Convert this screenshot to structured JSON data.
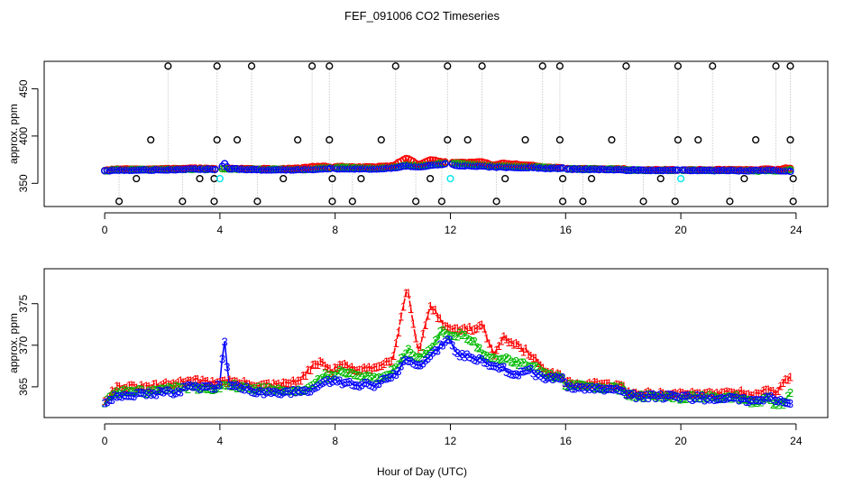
{
  "title": "FEF_091006  CO2 Timeseries",
  "xlabel": "Hour of Day (UTC)",
  "colors": {
    "s1": "#ff0000",
    "s2": "#00bb00",
    "s3": "#0000ff",
    "flag": "#000000",
    "cyan": "#00e5ee",
    "vline": "#b0b0b0"
  },
  "chart_data": [
    {
      "type": "scatter",
      "title": "FEF_091006  CO2 Timeseries",
      "ylabel": "approx. ppm",
      "xlim": [
        -2.1,
        25.1
      ],
      "ylim": [
        325.5,
        479
      ],
      "xticks": [
        0,
        4,
        8,
        12,
        16,
        20,
        24
      ],
      "yticks": [
        350,
        400,
        450
      ],
      "marker": "circle",
      "series_note": "three colored series plotted as open circles; outlier flags in black with dotted drop lines",
      "high_flags_x": [
        2.2,
        3.9,
        5.1,
        7.2,
        7.8,
        10.1,
        11.9,
        13.1,
        15.2,
        15.8,
        18.1,
        19.9,
        21.1,
        23.3,
        23.8
      ],
      "low_flags_x": [
        0.5,
        2.7,
        3.8,
        5.3,
        7.9,
        8.6,
        10.8,
        11.7,
        13.6,
        15.9,
        16.6,
        18.7,
        19.8,
        21.7,
        23.9
      ],
      "mid_flags": [
        [
          1.6,
          396
        ],
        [
          3.9,
          396
        ],
        [
          4.6,
          396
        ],
        [
          6.7,
          396
        ],
        [
          7.8,
          396
        ],
        [
          9.6,
          396
        ],
        [
          11.9,
          396
        ],
        [
          12.6,
          396
        ],
        [
          14.6,
          396
        ],
        [
          15.8,
          396
        ],
        [
          17.6,
          396
        ],
        [
          19.9,
          396
        ],
        [
          20.6,
          396
        ],
        [
          22.6,
          396
        ],
        [
          23.8,
          396
        ]
      ],
      "flag355_x": [
        1.1,
        3.3,
        3.8,
        6.2,
        7.9,
        8.9,
        11.3,
        13.9,
        15.9,
        16.9,
        19.3,
        22.2,
        23.9
      ],
      "cyan_points": [
        [
          4.0,
          355
        ],
        [
          12.0,
          355
        ],
        [
          20.0,
          355
        ]
      ]
    },
    {
      "type": "scatter",
      "ylabel": "approx. ppm",
      "xlim": [
        -2.1,
        25.1
      ],
      "ylim": [
        361.3,
        379.2
      ],
      "xticks": [
        0,
        4,
        8,
        12,
        16,
        20,
        24
      ],
      "yticks": [
        365,
        370,
        375
      ],
      "marker": "text",
      "series": [
        {
          "name": "1",
          "color": "red",
          "key": [
            [
              0,
              363.5
            ],
            [
              0.4,
              365
            ],
            [
              1.5,
              365
            ],
            [
              2.5,
              365.5
            ],
            [
              3.0,
              366
            ],
            [
              3.6,
              365.5
            ],
            [
              4.2,
              365.8
            ],
            [
              5.2,
              365.3
            ],
            [
              6.0,
              365.2
            ],
            [
              6.8,
              365.8
            ],
            [
              7.2,
              367.5
            ],
            [
              7.6,
              368
            ],
            [
              7.9,
              366.8
            ],
            [
              8.2,
              367.8
            ],
            [
              8.8,
              367
            ],
            [
              9.4,
              367.3
            ],
            [
              10.0,
              368.5
            ],
            [
              10.5,
              377
            ],
            [
              10.9,
              369
            ],
            [
              11.3,
              375
            ],
            [
              11.7,
              372.8
            ],
            [
              12.0,
              372
            ],
            [
              12.4,
              372
            ],
            [
              12.8,
              372
            ],
            [
              13.1,
              372.5
            ],
            [
              13.5,
              369
            ],
            [
              13.8,
              371
            ],
            [
              14.3,
              370
            ],
            [
              14.8,
              369
            ],
            [
              15.2,
              367.2
            ],
            [
              15.5,
              366.7
            ],
            [
              15.9,
              366.2
            ],
            [
              16.0,
              365.5
            ],
            [
              18.0,
              365.2
            ],
            [
              18.1,
              364.3
            ],
            [
              19.9,
              364.2
            ],
            [
              20.0,
              364.2
            ],
            [
              21.7,
              364.4
            ],
            [
              22.0,
              364.5
            ],
            [
              22.6,
              364
            ],
            [
              23.0,
              365
            ],
            [
              23.3,
              364
            ],
            [
              23.6,
              366
            ],
            [
              23.8,
              366
            ]
          ]
        },
        {
          "name": "2",
          "color": "green",
          "key": [
            [
              0,
              363.2
            ],
            [
              0.4,
              364.5
            ],
            [
              1.5,
              364.5
            ],
            [
              2.5,
              365
            ],
            [
              3.0,
              365
            ],
            [
              3.6,
              364.8
            ],
            [
              4.2,
              365.3
            ],
            [
              5.2,
              364.8
            ],
            [
              6.0,
              364.8
            ],
            [
              6.8,
              364.6
            ],
            [
              7.2,
              365
            ],
            [
              7.6,
              366.5
            ],
            [
              7.9,
              366.2
            ],
            [
              8.2,
              367
            ],
            [
              8.8,
              366.5
            ],
            [
              9.4,
              366
            ],
            [
              10.0,
              367
            ],
            [
              10.5,
              369.5
            ],
            [
              10.9,
              368.5
            ],
            [
              11.3,
              369.5
            ],
            [
              11.7,
              371.8
            ],
            [
              12.0,
              371
            ],
            [
              12.4,
              371.5
            ],
            [
              12.8,
              370.5
            ],
            [
              13.1,
              369.2
            ],
            [
              13.5,
              368.3
            ],
            [
              13.8,
              368.5
            ],
            [
              14.3,
              368
            ],
            [
              14.8,
              367.5
            ],
            [
              15.2,
              367
            ],
            [
              15.5,
              366.5
            ],
            [
              15.9,
              366
            ],
            [
              16.0,
              365.3
            ],
            [
              18.0,
              364.8
            ],
            [
              18.1,
              364
            ],
            [
              19.9,
              363.8
            ],
            [
              20.0,
              363.8
            ],
            [
              21.7,
              363.8
            ],
            [
              22.0,
              363.8
            ],
            [
              22.6,
              363
            ],
            [
              23.0,
              363.8
            ],
            [
              23.3,
              362.8
            ],
            [
              23.6,
              363.3
            ],
            [
              23.8,
              364.5
            ]
          ]
        },
        {
          "name": "3",
          "color": "blue",
          "key": [
            [
              0,
              363.2
            ],
            [
              0.4,
              364
            ],
            [
              1.5,
              364.2
            ],
            [
              2.5,
              364.4
            ],
            [
              3.0,
              365.2
            ],
            [
              3.6,
              364.8
            ],
            [
              4.0,
              365.2
            ],
            [
              4.15,
              371
            ],
            [
              4.3,
              365.5
            ],
            [
              5.2,
              364.5
            ],
            [
              6.0,
              364.3
            ],
            [
              6.8,
              364.5
            ],
            [
              7.2,
              364.6
            ],
            [
              7.6,
              365.6
            ],
            [
              7.9,
              365.8
            ],
            [
              8.2,
              365.5
            ],
            [
              8.8,
              365.3
            ],
            [
              9.4,
              365.3
            ],
            [
              10.0,
              366.2
            ],
            [
              10.5,
              368.5
            ],
            [
              10.9,
              367.5
            ],
            [
              11.3,
              369
            ],
            [
              11.7,
              370
            ],
            [
              12.0,
              371
            ],
            [
              12.2,
              369
            ],
            [
              12.8,
              368.5
            ],
            [
              13.1,
              368.2
            ],
            [
              13.5,
              367.3
            ],
            [
              13.8,
              367.3
            ],
            [
              14.3,
              366.5
            ],
            [
              14.8,
              367
            ],
            [
              15.2,
              366
            ],
            [
              15.5,
              366
            ],
            [
              15.9,
              366
            ],
            [
              16.0,
              365.1
            ],
            [
              18.0,
              364.6
            ],
            [
              18.1,
              364
            ],
            [
              19.9,
              363.8
            ],
            [
              20.0,
              363.8
            ],
            [
              21.7,
              363.6
            ],
            [
              22.0,
              363.5
            ],
            [
              22.6,
              363.5
            ],
            [
              23.0,
              363.8
            ],
            [
              23.3,
              363.6
            ],
            [
              23.6,
              363
            ],
            [
              23.8,
              363
            ]
          ]
        }
      ]
    }
  ]
}
